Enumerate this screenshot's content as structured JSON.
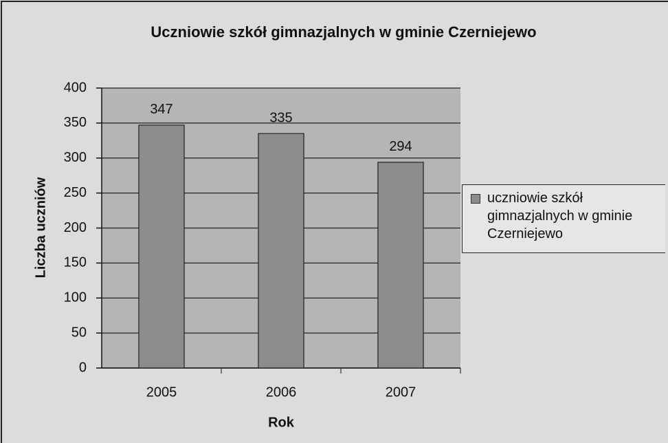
{
  "chart_data": {
    "type": "bar",
    "title": "Uczniowie szkół gimnazjalnych w gminie Czerniejewo",
    "xlabel": "Rok",
    "ylabel": "Liczba uczniów",
    "categories": [
      "2005",
      "2006",
      "2007"
    ],
    "series": [
      {
        "name": "uczniowie szkół gimnazjalnych w gminie Czerniejewo",
        "color": "#8c8c8c",
        "values": [
          347,
          335,
          294
        ]
      }
    ],
    "ylim": [
      0,
      400
    ],
    "yticks": [
      0,
      50,
      100,
      150,
      200,
      250,
      300,
      350,
      400
    ],
    "grid": true,
    "legend": "right"
  }
}
